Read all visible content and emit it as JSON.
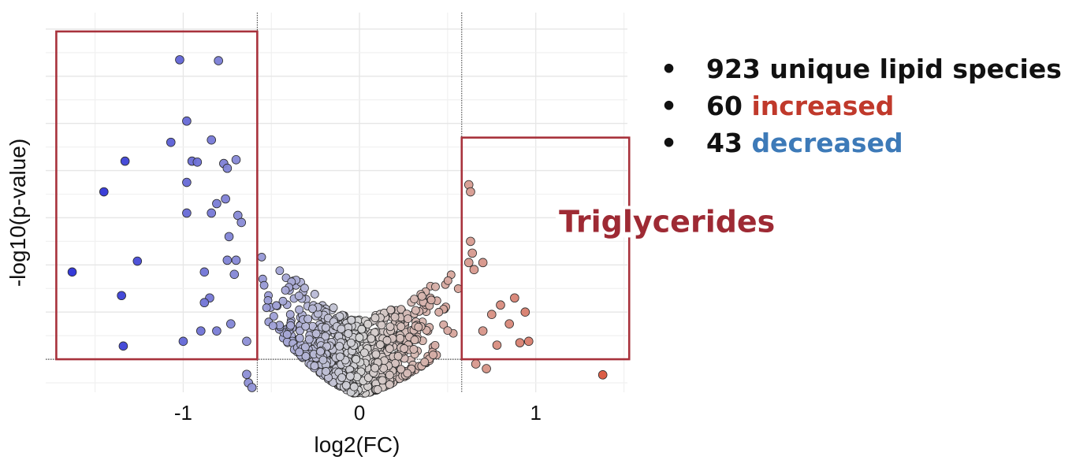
{
  "chart_data": {
    "type": "scatter",
    "title": "",
    "xlabel": "log2(FC)",
    "ylabel": "-log10(p-value)",
    "xlim": [
      -1.78,
      1.52
    ],
    "ylim": [
      -0.7,
      7.35
    ],
    "x_ticks": [
      "-1",
      "0",
      "1"
    ],
    "grid": true,
    "thresholds": {
      "x": [
        -0.58,
        0.58
      ],
      "y": 0
    },
    "color_scale": {
      "low": "#2a2fd6",
      "mid": "#d6d6d6",
      "high": "#d94a30"
    },
    "regions": [
      {
        "label": "",
        "x": [
          -1.72,
          -0.58
        ],
        "y": [
          0,
          6.95
        ]
      },
      {
        "label": "Triglycerides",
        "x": [
          0.58,
          1.53
        ],
        "y": [
          0,
          4.7
        ]
      }
    ],
    "highlighted_points": [
      {
        "x": -1.63,
        "y": 1.85
      },
      {
        "x": -1.45,
        "y": 3.55
      },
      {
        "x": -1.33,
        "y": 4.2
      },
      {
        "x": -1.35,
        "y": 1.35
      },
      {
        "x": -1.34,
        "y": 0.28
      },
      {
        "x": -1.26,
        "y": 2.08
      },
      {
        "x": -1.02,
        "y": 6.35
      },
      {
        "x": -0.8,
        "y": 6.33
      },
      {
        "x": -0.98,
        "y": 5.05
      },
      {
        "x": -1.07,
        "y": 4.6
      },
      {
        "x": -0.95,
        "y": 4.2
      },
      {
        "x": -0.92,
        "y": 4.18
      },
      {
        "x": -0.98,
        "y": 3.75
      },
      {
        "x": -0.98,
        "y": 3.1
      },
      {
        "x": -0.84,
        "y": 4.65
      },
      {
        "x": -0.77,
        "y": 4.15
      },
      {
        "x": -0.75,
        "y": 4.05
      },
      {
        "x": -0.7,
        "y": 4.23
      },
      {
        "x": -0.76,
        "y": 3.4
      },
      {
        "x": -0.84,
        "y": 3.1
      },
      {
        "x": -0.81,
        "y": 3.3
      },
      {
        "x": -0.69,
        "y": 3.05
      },
      {
        "x": -0.67,
        "y": 2.9
      },
      {
        "x": -0.74,
        "y": 2.6
      },
      {
        "x": -0.75,
        "y": 2.1
      },
      {
        "x": -0.7,
        "y": 2.1
      },
      {
        "x": -0.71,
        "y": 1.8
      },
      {
        "x": -0.88,
        "y": 1.85
      },
      {
        "x": -0.85,
        "y": 1.3
      },
      {
        "x": -0.88,
        "y": 1.2
      },
      {
        "x": -0.73,
        "y": 0.75
      },
      {
        "x": -0.81,
        "y": 0.6
      },
      {
        "x": -0.9,
        "y": 0.6
      },
      {
        "x": -1.0,
        "y": 0.38
      },
      {
        "x": -0.64,
        "y": 0.38
      },
      {
        "x": -0.64,
        "y": -0.32
      },
      {
        "x": -0.63,
        "y": -0.5
      },
      {
        "x": -0.61,
        "y": -0.6
      },
      {
        "x": 0.62,
        "y": 3.7
      },
      {
        "x": 0.63,
        "y": 3.55
      },
      {
        "x": 0.63,
        "y": 2.5
      },
      {
        "x": 0.64,
        "y": 2.25
      },
      {
        "x": 0.62,
        "y": 2.05
      },
      {
        "x": 0.65,
        "y": 1.9
      },
      {
        "x": 0.7,
        "y": 2.05
      },
      {
        "x": 0.8,
        "y": 1.15
      },
      {
        "x": 0.85,
        "y": 0.75
      },
      {
        "x": 0.88,
        "y": 1.3
      },
      {
        "x": 0.94,
        "y": 1.0
      },
      {
        "x": 0.96,
        "y": 0.38
      },
      {
        "x": 0.91,
        "y": 0.35
      },
      {
        "x": 0.75,
        "y": 0.95
      },
      {
        "x": 0.7,
        "y": 0.6
      },
      {
        "x": 0.78,
        "y": 0.3
      },
      {
        "x": 0.72,
        "y": -0.2
      },
      {
        "x": 0.66,
        "y": -0.1
      },
      {
        "x": 1.38,
        "y": -0.33
      }
    ]
  },
  "summary": {
    "bullet": "•",
    "total_count": "923",
    "total_text": "unique lipid species",
    "increased_count": "60",
    "increased_text": "increased",
    "decreased_count": "43",
    "decreased_text": "decreased"
  }
}
